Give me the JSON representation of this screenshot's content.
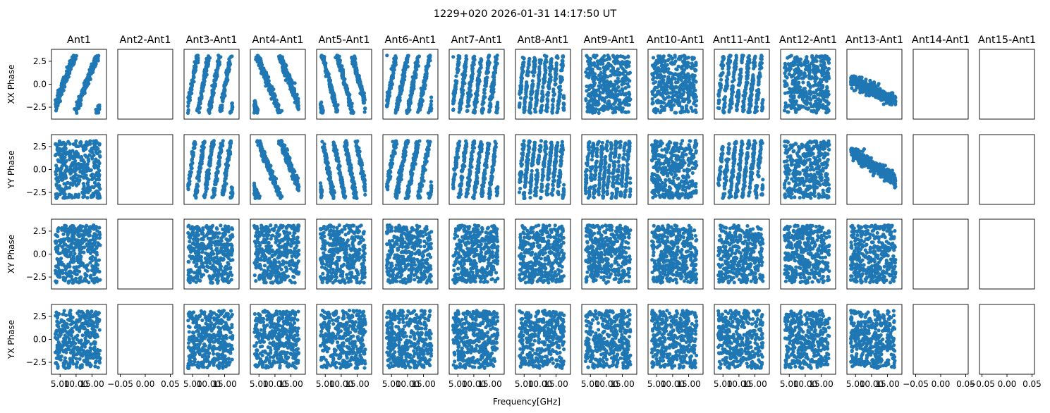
{
  "chart_data": {
    "type": "scatter",
    "title": "1229+020 2026-01-31 14:17:50 UT",
    "xlabel": "Frequency[GHz]",
    "columns": [
      "Ant1",
      "Ant2-Ant1",
      "Ant3-Ant1",
      "Ant4-Ant1",
      "Ant5-Ant1",
      "Ant6-Ant1",
      "Ant7-Ant1",
      "Ant8-Ant1",
      "Ant9-Ant1",
      "Ant10-Ant1",
      "Ant11-Ant1",
      "Ant12-Ant1",
      "Ant13-Ant1",
      "Ant14-Ant1",
      "Ant15-Ant1"
    ],
    "rows": [
      "XX Phase",
      "YY Phase",
      "XY Phase",
      "YX Phase"
    ],
    "ylim": [
      -3.8,
      3.8
    ],
    "yticks": [
      -2.5,
      0.0,
      2.5
    ],
    "ytick_labels": [
      "−2.5",
      "0.0",
      "2.5"
    ],
    "xlim": [
      2.3,
      19.5
    ],
    "xticks": [
      5.0,
      10.0,
      15.0
    ],
    "xtick_labels": [
      "5.00",
      "10.00",
      "15.00"
    ],
    "empty_xlim": [
      -0.055,
      0.055
    ],
    "empty_xticks": [
      -0.05,
      0.0,
      0.05
    ],
    "empty_xtick_labels": [
      "−0.05",
      "0.00",
      "0.05"
    ],
    "empty_columns": [
      1,
      13,
      14
    ],
    "frequency_range_ghz": [
      3.5,
      17.5
    ],
    "points_per_panel": 400,
    "phase_range": [
      -3.14,
      3.14
    ],
    "phase_wrap_turns": {
      "XX Phase": [
        2,
        null,
        4,
        2,
        3,
        4,
        6,
        8,
        null,
        null,
        7,
        null,
        0
      ],
      "YY Phase": [
        null,
        null,
        5,
        2,
        4,
        4,
        6,
        8,
        10,
        null,
        7,
        null,
        0
      ]
    },
    "ant13_linear_trend": {
      "XX Phase": {
        "start": 0.5,
        "end": -1.8
      },
      "YY Phase": {
        "start": 2.0,
        "end": -1.2
      }
    },
    "marker_color": "#1f77b4"
  }
}
